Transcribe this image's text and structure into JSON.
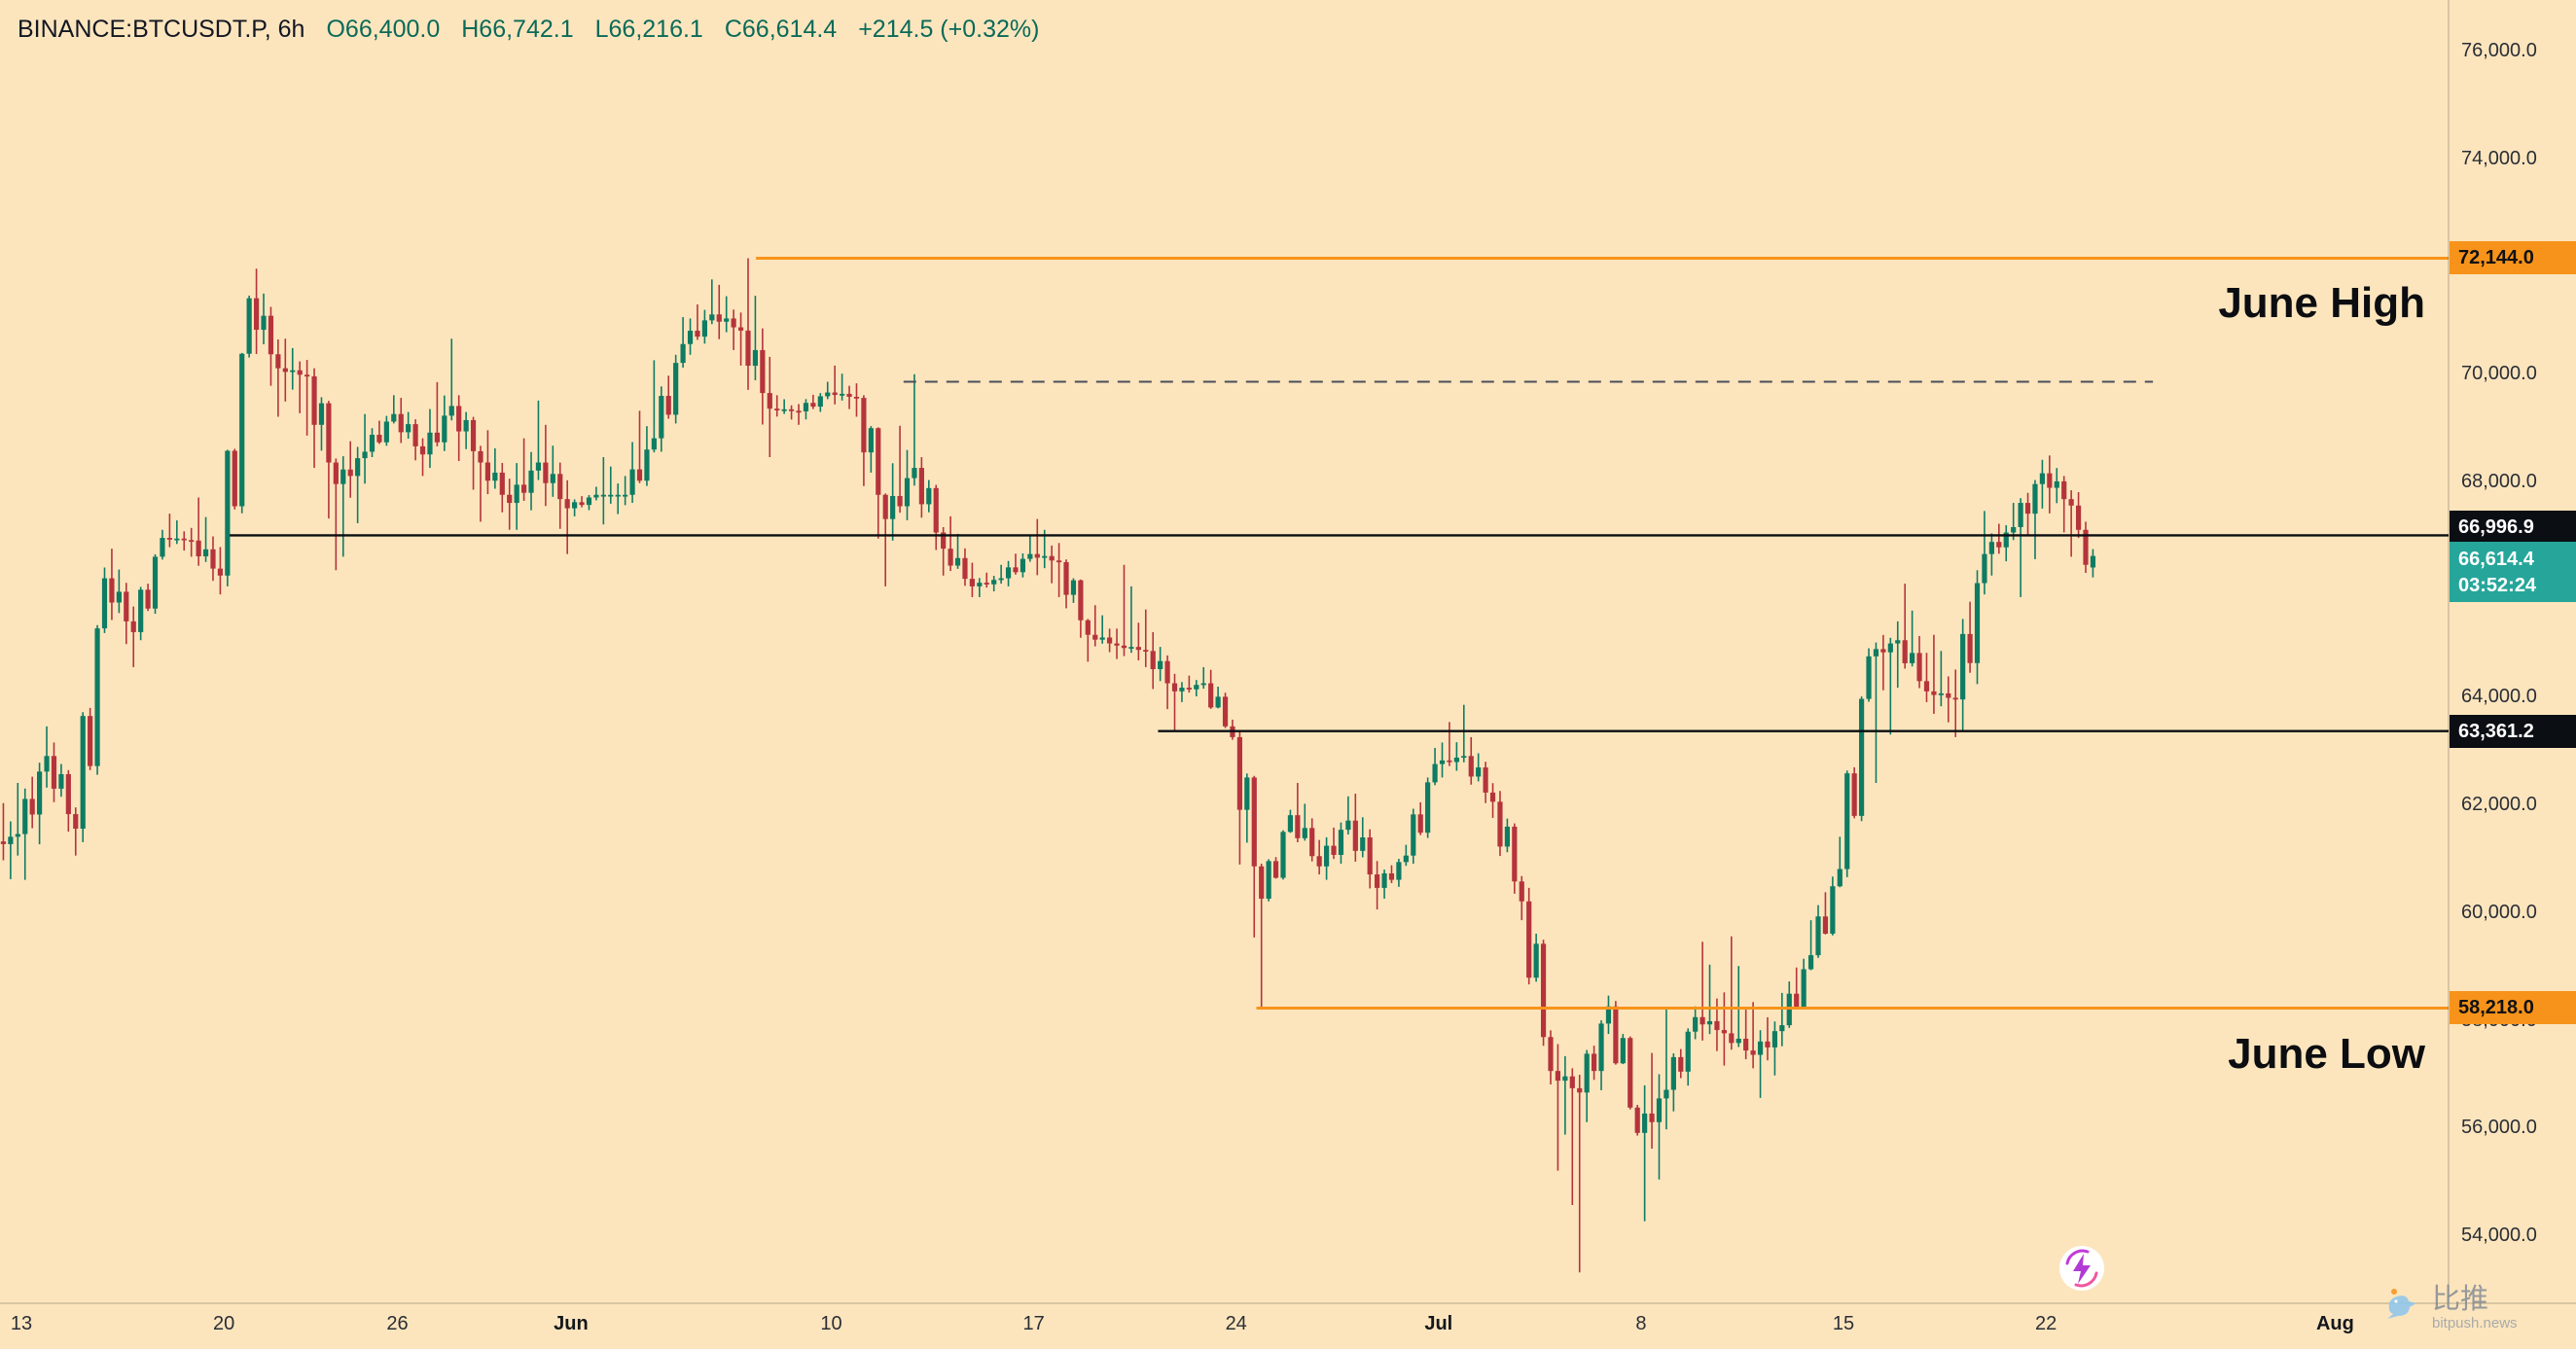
{
  "header": {
    "symbol_interval": "BINANCE:BTCUSDT.P, 6h",
    "open": "O66,400.0",
    "high": "H66,742.1",
    "low": "L66,216.1",
    "close": "C66,614.4",
    "change": "+214.5 (+0.32%)"
  },
  "current": {
    "price": 66614.4,
    "price_label": "66,614.4",
    "countdown": "03:52:24"
  },
  "annotations": {
    "june_high": {
      "label": "June High",
      "price": 72144.0,
      "price_label": "72,144.0",
      "start_day_index": 26.4
    },
    "june_low": {
      "label": "June Low",
      "price": 58218.0,
      "price_label": "58,218.0",
      "start_day_index": 43.7
    },
    "level_upper": {
      "price": 66996.9,
      "price_label": "66,996.9",
      "start_day_index": 8.2
    },
    "level_lower": {
      "price": 63361.2,
      "price_label": "63,361.2",
      "start_day_index": 40.3
    },
    "resistance_dashed": {
      "price": 69850,
      "start_day_index": 31.5,
      "end_day_index": 74.7
    }
  },
  "colors": {
    "background": "#FCE5BD",
    "candle_up": "#0E7C63",
    "candle_down": "#B5343C",
    "orange_line": "#F7931A",
    "black_line": "#0B0E13",
    "dashed_line": "#4A4F5A",
    "teal_badge": "#26A69A",
    "axis_text": "#2A2E35"
  },
  "watermark": {
    "brand": "比推",
    "domain": "bitpush.news"
  },
  "chart_data": {
    "type": "candlestick",
    "symbol": "BINANCE:BTCUSDT.P",
    "interval": "6h",
    "title": "BINANCE:BTCUSDT.P, 6h",
    "ylim": [
      52700,
      76950
    ],
    "grid": false,
    "legend": false,
    "current_bar": {
      "open": 66400.0,
      "high": 66742.1,
      "low": 66216.1,
      "close": 66614.4,
      "change": 214.5,
      "change_pct": 0.32
    },
    "price_axis_ticks": [
      {
        "label": "76,000.0",
        "price": 76000
      },
      {
        "label": "74,000.0",
        "price": 74000
      },
      {
        "label": "72,000.0",
        "price": 72000
      },
      {
        "label": "70,000.0",
        "price": 70000
      },
      {
        "label": "68,000.0",
        "price": 68000
      },
      {
        "label": "66,000.0",
        "price": 66000
      },
      {
        "label": "64,000.0",
        "price": 64000
      },
      {
        "label": "62,000.0",
        "price": 62000
      },
      {
        "label": "60,000.0",
        "price": 60000
      },
      {
        "label": "58,000.0",
        "price": 58000
      },
      {
        "label": "56,000.0",
        "price": 56000
      },
      {
        "label": "54,000.0",
        "price": 54000
      }
    ],
    "time_axis_ticks": [
      {
        "label": "13",
        "day": 1,
        "bold": false
      },
      {
        "label": "20",
        "day": 8,
        "bold": false
      },
      {
        "label": "26",
        "day": 14,
        "bold": false
      },
      {
        "label": "Jun",
        "day": 20,
        "bold": true
      },
      {
        "label": "10",
        "day": 29,
        "bold": false
      },
      {
        "label": "17",
        "day": 36,
        "bold": false
      },
      {
        "label": "24",
        "day": 43,
        "bold": false
      },
      {
        "label": "Jul",
        "day": 50,
        "bold": true
      },
      {
        "label": "8",
        "day": 57,
        "bold": false
      },
      {
        "label": "15",
        "day": 64,
        "bold": false
      },
      {
        "label": "22",
        "day": 71,
        "bold": false
      },
      {
        "label": "Aug",
        "day": 81,
        "bold": true
      }
    ],
    "daily_ohlc": {
      "columns": [
        "date",
        "open",
        "high",
        "low",
        "close"
      ],
      "rows": [
        [
          "May 12",
          61200,
          62400,
          60200,
          61450
        ],
        [
          "May 13",
          61450,
          63450,
          60600,
          62900
        ],
        [
          "May 14",
          62900,
          63150,
          61050,
          61550
        ],
        [
          "May 15",
          61550,
          66400,
          61300,
          66200
        ],
        [
          "May 16",
          66200,
          66750,
          64550,
          65200
        ],
        [
          "May 17",
          65200,
          67100,
          65050,
          66950
        ],
        [
          "May 18",
          66950,
          67400,
          66600,
          66900
        ],
        [
          "May 19",
          66900,
          67700,
          65900,
          66250
        ],
        [
          "May 20",
          66250,
          71450,
          66050,
          71400
        ],
        [
          "May 21",
          71400,
          71950,
          69200,
          70100
        ],
        [
          "May 22",
          70100,
          70650,
          68850,
          69950
        ],
        [
          "May 23",
          69950,
          70100,
          66350,
          67950
        ],
        [
          "May 24",
          67950,
          69250,
          66600,
          68550
        ],
        [
          "May 25",
          68550,
          69600,
          68450,
          69250
        ],
        [
          "May 26",
          69250,
          69550,
          68100,
          68500
        ],
        [
          "May 27",
          68500,
          70650,
          68250,
          69400
        ],
        [
          "May 28",
          69400,
          69600,
          67250,
          68350
        ],
        [
          "May 29",
          68350,
          68950,
          67100,
          67600
        ],
        [
          "May 30",
          67600,
          69500,
          67100,
          68350
        ],
        [
          "May 31",
          68350,
          69050,
          66650,
          67500
        ],
        [
          "Jun 1",
          67500,
          67900,
          67350,
          67750
        ],
        [
          "Jun 2",
          67750,
          68450,
          67200,
          67750
        ],
        [
          "Jun 3",
          67750,
          70250,
          67600,
          68800
        ],
        [
          "Jun 4",
          68800,
          71050,
          68550,
          70550
        ],
        [
          "Jun 5",
          70550,
          71750,
          70350,
          71100
        ],
        [
          "Jun 6",
          71100,
          71650,
          70150,
          70800
        ],
        [
          "Jun 7",
          70800,
          72144,
          68450,
          69350
        ],
        [
          "Jun 8",
          69350,
          69600,
          69050,
          69300
        ],
        [
          "Jun 9",
          69300,
          69850,
          69150,
          69650
        ],
        [
          "Jun 10",
          69650,
          70150,
          69200,
          69550
        ],
        [
          "Jun 11",
          69550,
          69600,
          66050,
          67300
        ],
        [
          "Jun 12",
          67300,
          69990,
          66900,
          68250
        ],
        [
          "Jun 13",
          68250,
          68450,
          66250,
          66750
        ],
        [
          "Jun 14",
          66750,
          67350,
          65850,
          66050
        ],
        [
          "Jun 15",
          66050,
          66450,
          65850,
          66200
        ],
        [
          "Jun 16",
          66200,
          66990,
          66050,
          66650
        ],
        [
          "Jun 17",
          66650,
          67300,
          65850,
          66500
        ],
        [
          "Jun 18",
          66500,
          66550,
          64650,
          65150
        ],
        [
          "Jun 19",
          65150,
          65700,
          64700,
          64950
        ],
        [
          "Jun 20",
          64950,
          66450,
          64550,
          64850
        ],
        [
          "Jun 21",
          64850,
          65200,
          63361,
          64100
        ],
        [
          "Jun 22",
          64100,
          64550,
          63900,
          64250
        ],
        [
          "Jun 23",
          64250,
          64500,
          63200,
          63250
        ],
        [
          "Jun 24",
          63250,
          63350,
          58218,
          60250
        ],
        [
          "Jun 25",
          60250,
          61900,
          60200,
          61800
        ],
        [
          "Jun 26",
          61800,
          62400,
          60700,
          60850
        ],
        [
          "Jun 27",
          60850,
          62150,
          60600,
          61700
        ],
        [
          "Jun 28",
          61700,
          62200,
          60050,
          60450
        ],
        [
          "Jun 29",
          60450,
          61250,
          60250,
          61050
        ],
        [
          "Jun 30",
          61050,
          63050,
          60900,
          62750
        ],
        [
          "Jul 1",
          62750,
          63850,
          62500,
          62900
        ],
        [
          "Jul 2",
          62900,
          63250,
          61750,
          62050
        ],
        [
          "Jul 3",
          62050,
          62250,
          59850,
          60200
        ],
        [
          "Jul 4",
          60200,
          60450,
          56800,
          57050
        ],
        [
          "Jul 5",
          57050,
          57550,
          53310,
          56650
        ],
        [
          "Jul 6",
          56650,
          58450,
          56100,
          58250
        ],
        [
          "Jul 7",
          58250,
          58350,
          55850,
          55900
        ],
        [
          "Jul 8",
          55900,
          58200,
          54260,
          56700
        ],
        [
          "Jul 9",
          56700,
          58250,
          56300,
          58050
        ],
        [
          "Jul 10",
          58050,
          59450,
          57150,
          57750
        ],
        [
          "Jul 11",
          57750,
          59550,
          57100,
          57350
        ],
        [
          "Jul 12",
          57350,
          58500,
          56550,
          57900
        ],
        [
          "Jul 13",
          57900,
          59850,
          57850,
          59200
        ],
        [
          "Jul 14",
          59200,
          61400,
          59150,
          60800
        ],
        [
          "Jul 15",
          60800,
          64900,
          60650,
          64750
        ],
        [
          "Jul 16",
          64750,
          65400,
          62400,
          65050
        ],
        [
          "Jul 17",
          65050,
          66100,
          63900,
          64100
        ],
        [
          "Jul 18",
          64100,
          65150,
          63250,
          63950
        ],
        [
          "Jul 19",
          63950,
          67450,
          63350,
          66650
        ],
        [
          "Jul 20",
          66650,
          67600,
          66250,
          67150
        ],
        [
          "Jul 21",
          67150,
          68400,
          65850,
          68150
        ],
        [
          "Jul 22",
          68150,
          68480,
          66600,
          67550
        ]
      ]
    },
    "last_day_intraday_6h": {
      "date": "Jul 23",
      "rows": [
        [
          67550,
          67800,
          66950,
          67100
        ],
        [
          67100,
          67250,
          66300,
          66450
        ],
        [
          66400,
          66742.1,
          66216.1,
          66614.4
        ]
      ]
    }
  }
}
